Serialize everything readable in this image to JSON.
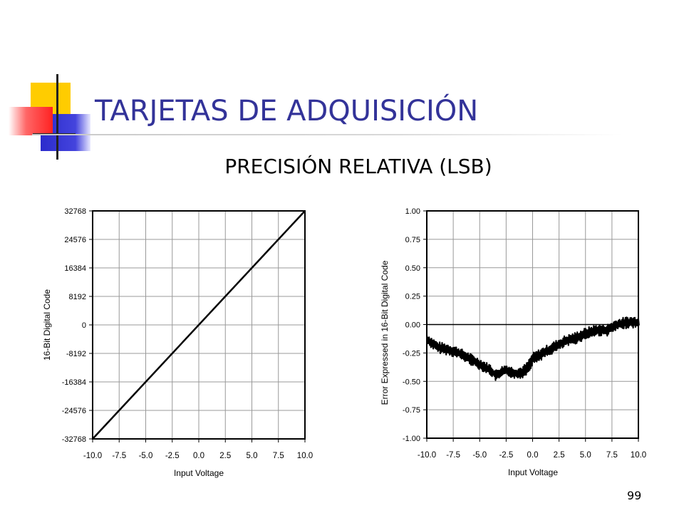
{
  "slide": {
    "title": "TARJETAS DE ADQUISICIÓN",
    "subtitle": "PRECISIÓN RELATIVA (LSB)",
    "page_number": "99",
    "accent_colors": {
      "title": "#333399",
      "deco_yellow": "#ffcc00",
      "deco_blue": "#3333cc",
      "deco_red": "#ff3333"
    }
  },
  "chart_data": [
    {
      "type": "line",
      "xlabel": "Input Voltage",
      "ylabel": "16-Bit Digital Code",
      "xlim": [
        -10,
        10
      ],
      "ylim": [
        -32768,
        32768
      ],
      "x_ticks": [
        -10,
        -7.5,
        -5,
        -2.5,
        0,
        2.5,
        5,
        7.5,
        10
      ],
      "x_tick_labels": [
        "-10.0",
        "-7.5",
        "-5.0",
        "-2.5",
        "0.0",
        "2.5",
        "5.0",
        "7.5",
        "10.0"
      ],
      "y_ticks": [
        -32768,
        -24576,
        -16384,
        -8192,
        0,
        8192,
        16384,
        24576,
        32768
      ],
      "y_tick_labels": [
        "-32768",
        "-24576",
        "-16384",
        "-8192",
        "0",
        "8192",
        "16384",
        "24576",
        "32768"
      ],
      "grid": true,
      "series": [
        {
          "x": [
            -10,
            10
          ],
          "y": [
            -32768,
            32768
          ]
        }
      ]
    },
    {
      "type": "line",
      "xlabel": "Input Voltage",
      "ylabel": "Error Expressed in 16-Bit Digital Code",
      "xlim": [
        -10,
        10
      ],
      "ylim": [
        -1,
        1
      ],
      "x_ticks": [
        -10,
        -7.5,
        -5,
        -2.5,
        0,
        2.5,
        5,
        7.5,
        10
      ],
      "x_tick_labels": [
        "-10.0",
        "-7.5",
        "-5.0",
        "-2.5",
        "0.0",
        "2.5",
        "5.0",
        "7.5",
        "10.0"
      ],
      "y_ticks": [
        1,
        0.75,
        0.5,
        0.25,
        0,
        -0.25,
        -0.5,
        -0.75,
        -1
      ],
      "y_tick_labels": [
        "1.00",
        "0.75",
        "0.50",
        "0.25",
        "0.00",
        "-0.25",
        "-0.50",
        "-0.75",
        "-1.00"
      ],
      "grid": true,
      "zero_line": true,
      "series": [
        {
          "x": [
            -10,
            -9,
            -8,
            -7,
            -6,
            -5,
            -4,
            -3.5,
            -3,
            -2.5,
            -2,
            -1.5,
            -1,
            -0.5,
            0,
            1,
            2,
            3,
            4,
            5,
            6,
            7,
            8,
            9,
            10
          ],
          "y": [
            -0.13,
            -0.2,
            -0.22,
            -0.25,
            -0.3,
            -0.35,
            -0.4,
            -0.45,
            -0.42,
            -0.4,
            -0.42,
            -0.43,
            -0.42,
            -0.38,
            -0.3,
            -0.25,
            -0.2,
            -0.15,
            -0.12,
            -0.08,
            -0.05,
            -0.05,
            0,
            0.02,
            0.02
          ],
          "band": 0.05
        }
      ]
    }
  ]
}
